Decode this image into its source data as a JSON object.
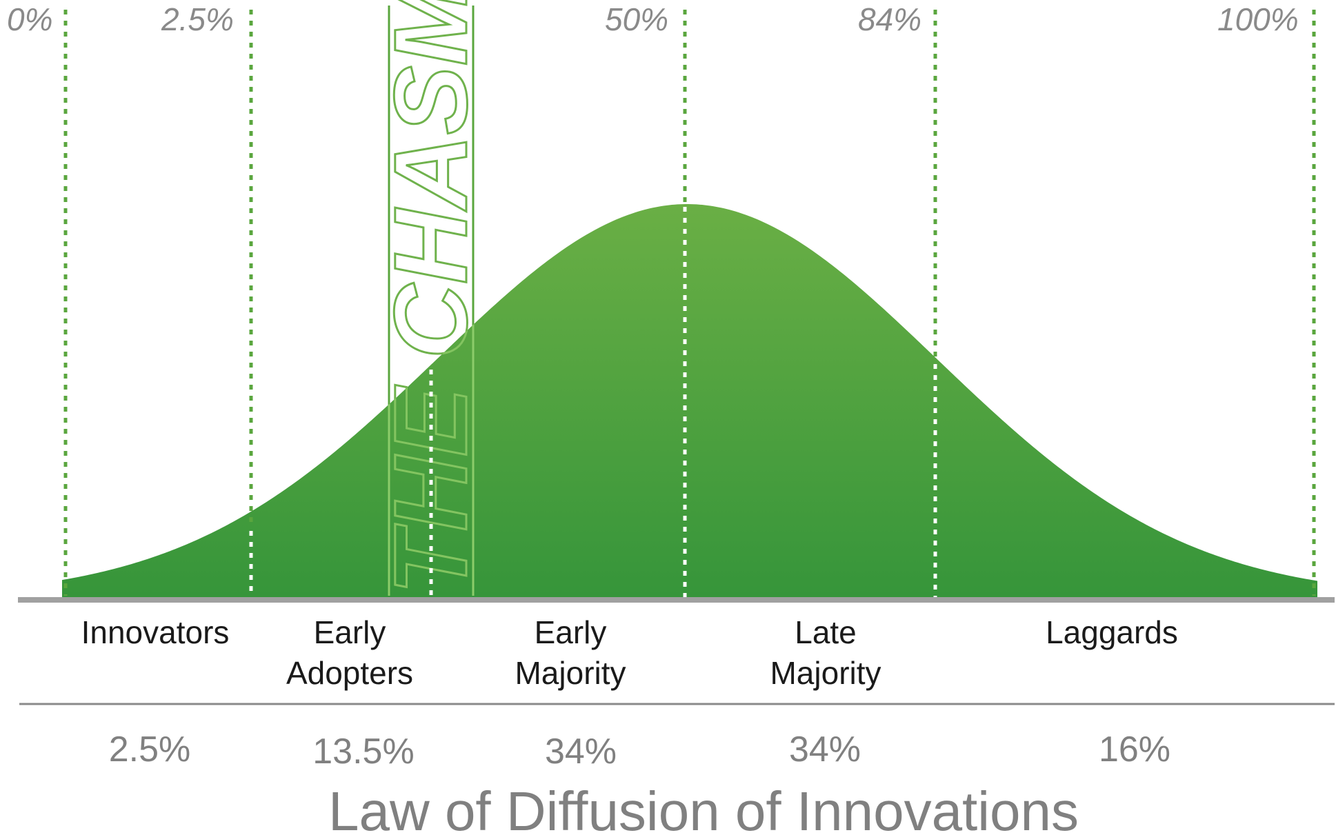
{
  "diagram": {
    "title": "Law of Diffusion of Innovations",
    "chasm_label": "THE CHASM",
    "top_percentiles": [
      {
        "key": "p0",
        "label": "0%"
      },
      {
        "key": "p2_5",
        "label": "2.5%"
      },
      {
        "key": "p50",
        "label": "50%"
      },
      {
        "key": "p84",
        "label": "84%"
      },
      {
        "key": "p100",
        "label": "100%"
      }
    ],
    "segments": [
      {
        "key": "innovators",
        "line1": "Innovators",
        "line2": "",
        "share": "2.5%"
      },
      {
        "key": "early-adopters",
        "line1": "Early",
        "line2": "Adopters",
        "share": "13.5%"
      },
      {
        "key": "early-majority",
        "line1": "Early",
        "line2": "Majority",
        "share": "34%"
      },
      {
        "key": "late-majority",
        "line1": "Late",
        "line2": "Majority",
        "share": "34%"
      },
      {
        "key": "laggards",
        "line1": "Laggards",
        "line2": "",
        "share": "16%"
      }
    ],
    "colors": {
      "curve_top": "#6aaf45",
      "curve_bottom": "#36953a",
      "divider_green": "#5aa63e",
      "divider_white": "#ffffff",
      "axis": "#a0a0a0",
      "text_gray": "#808080",
      "text_dark": "#1a1a1a"
    }
  }
}
